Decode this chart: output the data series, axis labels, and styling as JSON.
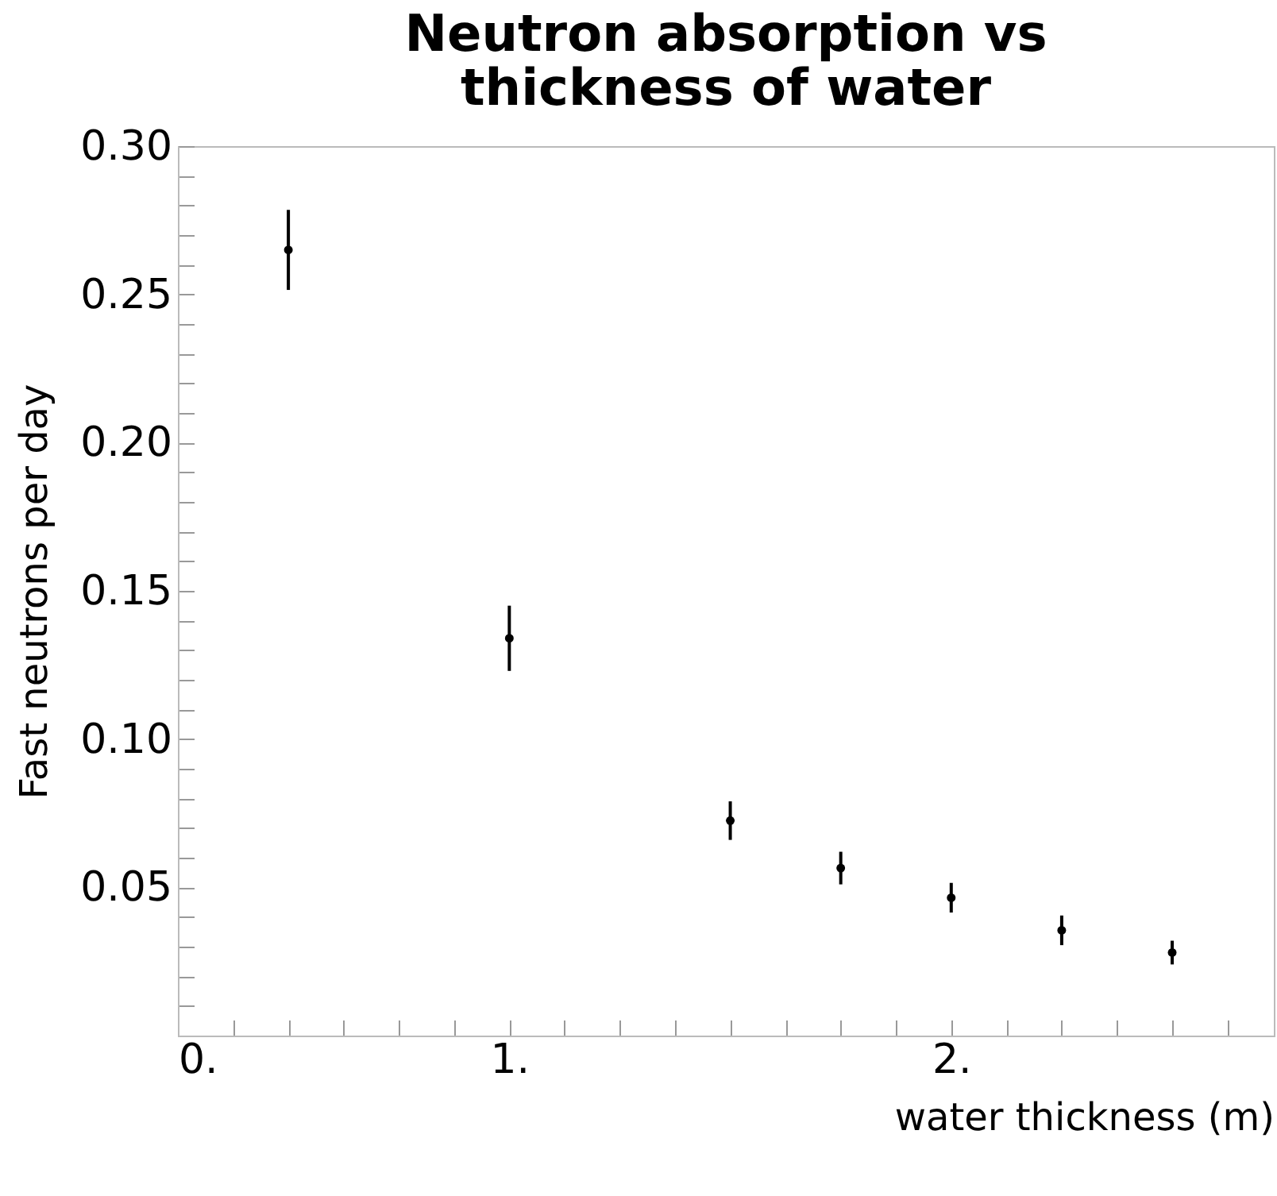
{
  "chart_data": {
    "type": "scatter",
    "title": "Neutron absorption vs\nthickness of water",
    "xlabel": "water thickness (m)",
    "ylabel": "Fast neutrons per day",
    "x": [
      0.5,
      1.0,
      1.5,
      1.75,
      2.0,
      2.25,
      2.5
    ],
    "series": [
      {
        "color": "#000000",
        "values": [
          0.265,
          0.134,
          0.0725,
          0.0565,
          0.0465,
          0.0355,
          0.028
        ],
        "errors": [
          0.0135,
          0.011,
          0.0065,
          0.0055,
          0.005,
          0.005,
          0.004
        ]
      }
    ],
    "xlim": [
      0.25,
      2.73
    ],
    "xticks": [
      {
        "value": 0.25,
        "label": "0."
      },
      {
        "value": 0.375,
        "label": null
      },
      {
        "value": 0.5,
        "label": null
      },
      {
        "value": 0.625,
        "label": null
      },
      {
        "value": 0.75,
        "label": null
      },
      {
        "value": 0.875,
        "label": null
      },
      {
        "value": 1,
        "label": "1."
      },
      {
        "value": 1.125,
        "label": null
      },
      {
        "value": 1.25,
        "label": null
      },
      {
        "value": 1.375,
        "label": null
      },
      {
        "value": 1.5,
        "label": null
      },
      {
        "value": 1.625,
        "label": null
      },
      {
        "value": 1.75,
        "label": null
      },
      {
        "value": 1.875,
        "label": null
      },
      {
        "value": 2,
        "label": "2."
      },
      {
        "value": 2.125,
        "label": null
      },
      {
        "value": 2.25,
        "label": null
      },
      {
        "value": 2.375,
        "label": null
      },
      {
        "value": 2.5,
        "label": null
      },
      {
        "value": 2.625,
        "label": null
      }
    ],
    "ylim": [
      0,
      0.3
    ],
    "yticks": [
      {
        "value": 0.01,
        "label": null
      },
      {
        "value": 0.02,
        "label": null
      },
      {
        "value": 0.03,
        "label": null
      },
      {
        "value": 0.04,
        "label": null
      },
      0.05,
      {
        "value": 0.06,
        "label": null
      },
      {
        "value": 0.07,
        "label": null
      },
      {
        "value": 0.08,
        "label": null
      },
      {
        "value": 0.09,
        "label": null
      },
      {
        "value": 0.1,
        "label": "0.10"
      },
      {
        "value": 0.11,
        "label": null
      },
      {
        "value": 0.12,
        "label": null
      },
      {
        "value": 0.13,
        "label": null
      },
      {
        "value": 0.14,
        "label": null
      },
      0.15,
      {
        "value": 0.16,
        "label": null
      },
      {
        "value": 0.17,
        "label": null
      },
      {
        "value": 0.18,
        "label": null
      },
      {
        "value": 0.19,
        "label": null
      },
      {
        "value": 0.2,
        "label": "0.20"
      },
      {
        "value": 0.21,
        "label": null
      },
      {
        "value": 0.22,
        "label": null
      },
      {
        "value": 0.23,
        "label": null
      },
      {
        "value": 0.24,
        "label": null
      },
      0.25,
      {
        "value": 0.26,
        "label": null
      },
      {
        "value": 0.27,
        "label": null
      },
      {
        "value": 0.28,
        "label": null
      },
      {
        "value": 0.29,
        "label": null
      },
      {
        "value": 0.3,
        "label": "0.30"
      }
    ],
    "marker": "circle",
    "grid": false
  }
}
